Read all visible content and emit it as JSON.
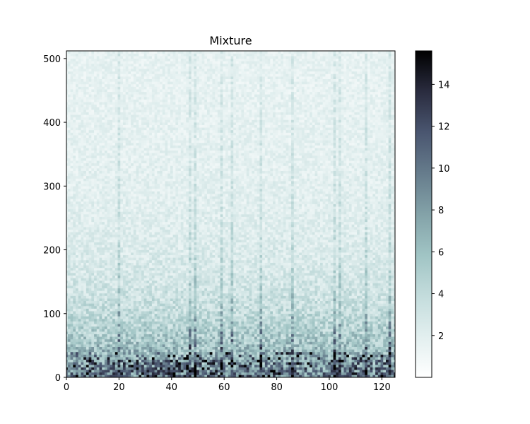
{
  "chart_data": {
    "type": "heatmap",
    "title": "Mixture",
    "xlabel": "",
    "ylabel": "",
    "xlim": [
      0,
      125
    ],
    "ylim": [
      0,
      512
    ],
    "xticks": [
      0,
      20,
      40,
      60,
      80,
      100,
      120
    ],
    "yticks": [
      0,
      100,
      200,
      300,
      400,
      500
    ],
    "colormap": "bone_r",
    "colorbar": {
      "range": [
        0,
        15.6
      ],
      "ticks": [
        2,
        4,
        6,
        8,
        10,
        12,
        14
      ],
      "placement": "right"
    },
    "grid": false,
    "description_values": {
      "low_frequency_band_max": 15,
      "high_frequency_band_typical": 1.5
    }
  }
}
